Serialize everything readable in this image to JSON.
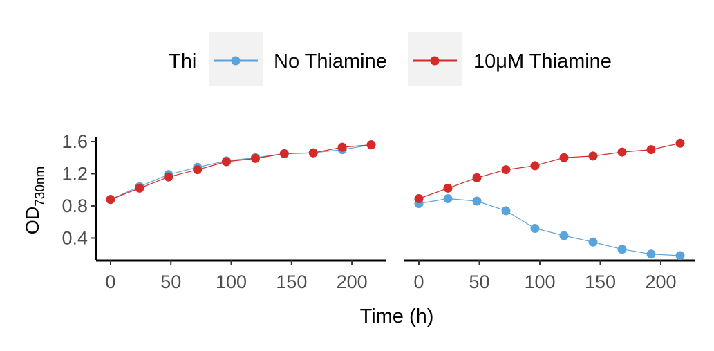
{
  "chart_data": {
    "type": "line",
    "legend": {
      "title": "Thi",
      "placement": "top",
      "entries": [
        {
          "label": "No Thiamine",
          "color": "#5BA4DB"
        },
        {
          "label": "10μM Thiamine",
          "color": "#D42A2A"
        }
      ]
    },
    "xlabel": "Time (h)",
    "ylabel_main": "OD",
    "ylabel_sub": "730nm",
    "xlim": [
      -12,
      228
    ],
    "ylim": [
      0.12,
      1.66
    ],
    "xticks": [
      0,
      50,
      100,
      150,
      200
    ],
    "yticks": [
      0.4,
      0.8,
      1.2,
      1.6
    ],
    "ytick_labels": [
      "0.4",
      "0.8",
      "1.2",
      "1.6"
    ],
    "grid": false,
    "panels": [
      {
        "x": [
          0,
          24,
          48,
          72,
          96,
          120,
          144,
          168,
          192,
          216
        ],
        "series": [
          {
            "name": "No Thiamine",
            "values": [
              0.88,
              1.04,
              1.19,
              1.28,
              1.36,
              1.4,
              1.45,
              1.46,
              1.5,
              1.56
            ]
          },
          {
            "name": "10μM Thiamine",
            "values": [
              0.88,
              1.02,
              1.16,
              1.25,
              1.35,
              1.39,
              1.45,
              1.46,
              1.53,
              1.56
            ]
          }
        ]
      },
      {
        "x": [
          0,
          24,
          48,
          72,
          96,
          120,
          144,
          168,
          192,
          216
        ],
        "series": [
          {
            "name": "No Thiamine",
            "values": [
              0.83,
              0.89,
              0.86,
              0.74,
              0.52,
              0.43,
              0.35,
              0.26,
              0.2,
              0.18
            ]
          },
          {
            "name": "10μM Thiamine",
            "values": [
              0.89,
              1.02,
              1.15,
              1.25,
              1.3,
              1.4,
              1.42,
              1.47,
              1.5,
              1.58
            ]
          }
        ]
      }
    ]
  }
}
